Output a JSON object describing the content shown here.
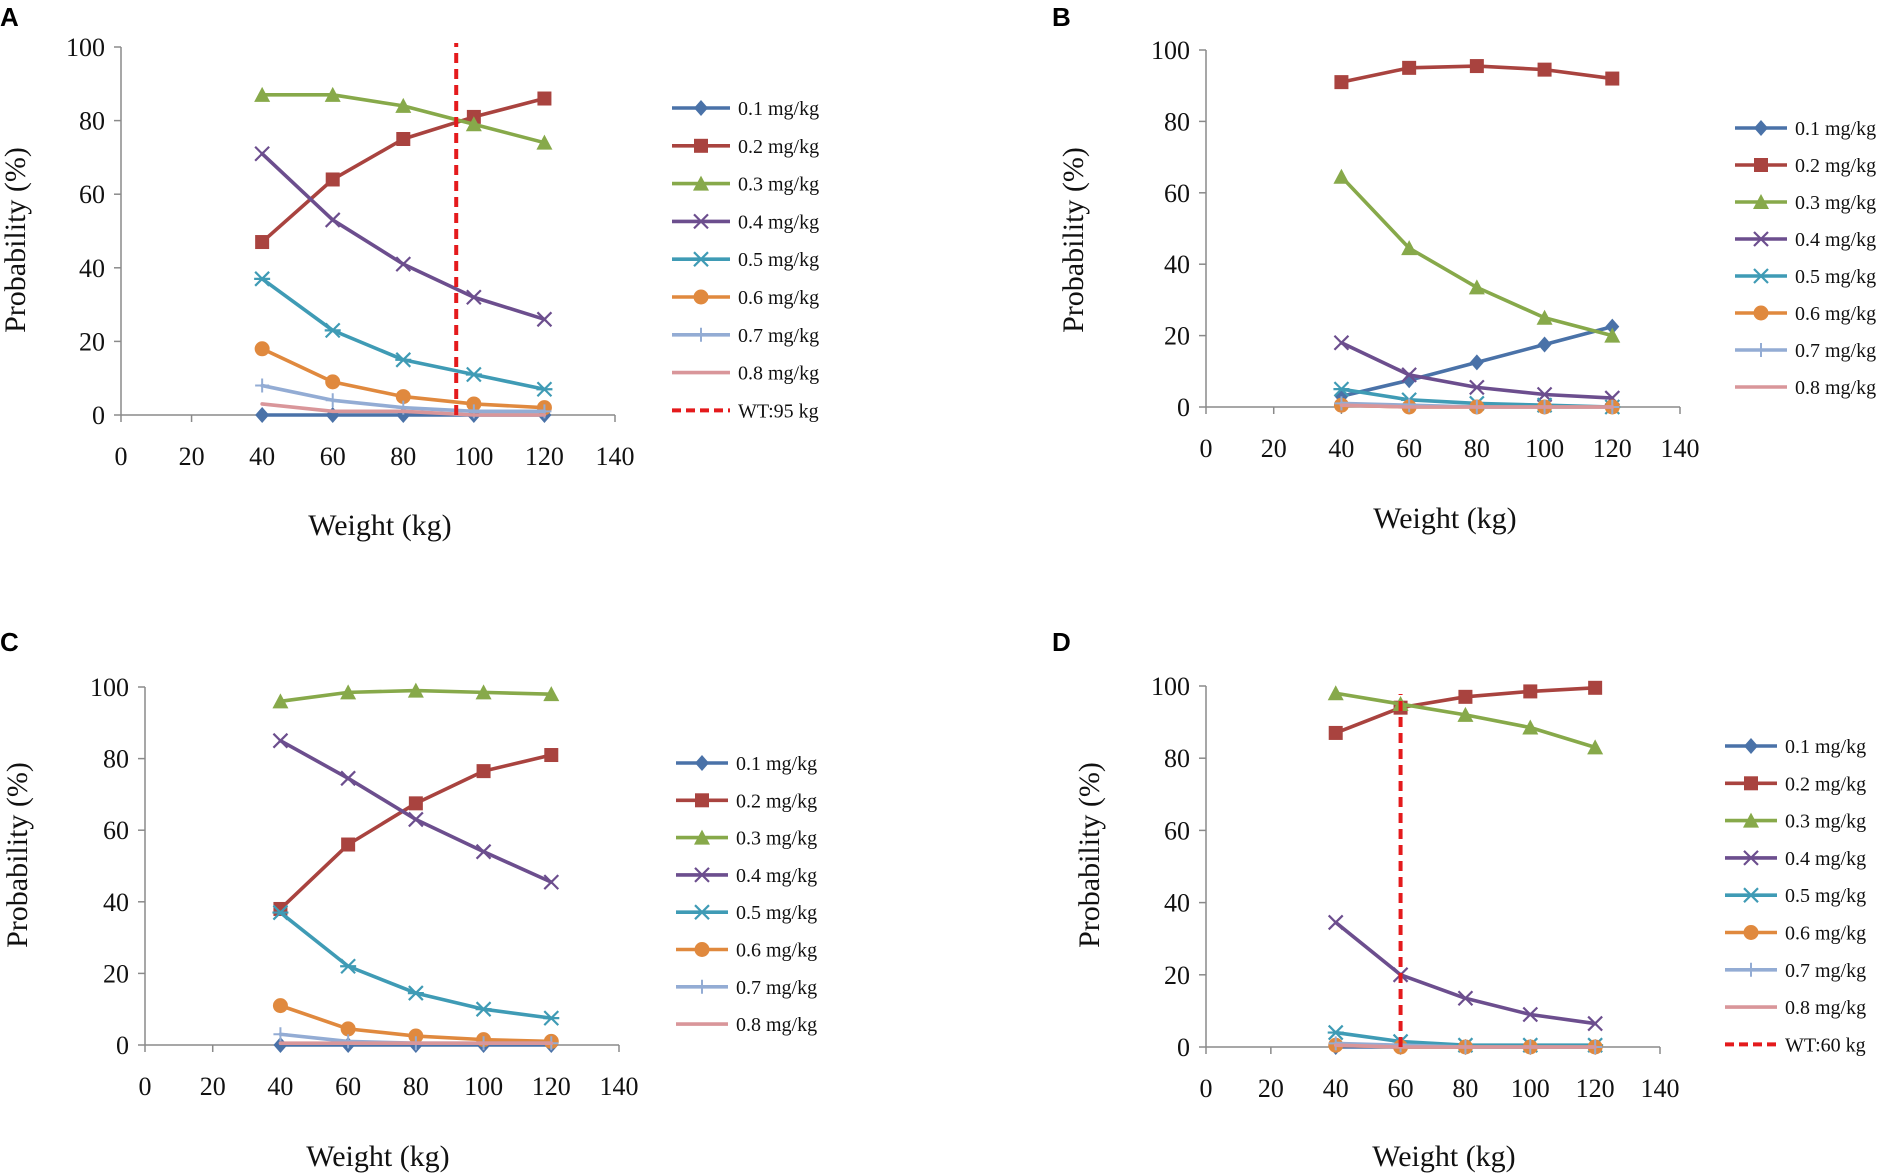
{
  "colors": {
    "0.1 mg/kg": "#4A72A8",
    "0.2 mg/kg": "#A9433F",
    "0.3 mg/kg": "#87A94A",
    "0.4 mg/kg": "#6C4E8E",
    "0.5 mg/kg": "#3F9BB5",
    "0.6 mg/kg": "#E0893E",
    "0.7 mg/kg": "#93ACD4",
    "0.8 mg/kg": "#D9969A",
    "wt_line": "#E41A1C"
  },
  "markers": {
    "0.1 mg/kg": "diamond",
    "0.2 mg/kg": "square",
    "0.3 mg/kg": "triangle",
    "0.4 mg/kg": "x",
    "0.5 mg/kg": "asterisk",
    "0.6 mg/kg": "circle",
    "0.7 mg/kg": "plus",
    "0.8 mg/kg": "none"
  },
  "chart_data": [
    {
      "panel": "A",
      "type": "line",
      "xlabel": "Weight (kg)",
      "ylabel": "Probability (%)",
      "xlim": [
        0,
        140
      ],
      "ylim": [
        0,
        100
      ],
      "xticks": [
        0,
        20,
        40,
        60,
        80,
        100,
        120,
        140
      ],
      "yticks": [
        0,
        20,
        40,
        60,
        80,
        100
      ],
      "x": [
        40,
        60,
        80,
        100,
        120
      ],
      "series": [
        {
          "name": "0.1 mg/kg",
          "values": [
            0,
            0,
            0,
            0,
            0
          ]
        },
        {
          "name": "0.2 mg/kg",
          "values": [
            47,
            64,
            75,
            81,
            86
          ]
        },
        {
          "name": "0.3 mg/kg",
          "values": [
            87,
            87,
            84,
            79,
            74
          ]
        },
        {
          "name": "0.4 mg/kg",
          "values": [
            71,
            53,
            41,
            32,
            26
          ]
        },
        {
          "name": "0.5 mg/kg",
          "values": [
            37,
            23,
            15,
            11,
            7
          ]
        },
        {
          "name": "0.6 mg/kg",
          "values": [
            18,
            9,
            5,
            3,
            2
          ]
        },
        {
          "name": "0.7 mg/kg",
          "values": [
            8,
            4,
            2,
            1,
            1
          ]
        },
        {
          "name": "0.8 mg/kg",
          "values": [
            3,
            1,
            1,
            0,
            0
          ]
        }
      ],
      "vline": {
        "x": 95,
        "label": "WT:95 kg"
      }
    },
    {
      "panel": "B",
      "type": "line",
      "xlabel": "Weight (kg)",
      "ylabel": "Probability (%)",
      "xlim": [
        0,
        140
      ],
      "ylim": [
        0,
        100
      ],
      "xticks": [
        0,
        20,
        40,
        60,
        80,
        100,
        120,
        140
      ],
      "yticks": [
        0,
        20,
        40,
        60,
        80,
        100
      ],
      "x": [
        40,
        60,
        80,
        100,
        120
      ],
      "series": [
        {
          "name": "0.1 mg/kg",
          "values": [
            3,
            7.5,
            12.5,
            17.5,
            22.5
          ]
        },
        {
          "name": "0.2 mg/kg",
          "values": [
            91,
            95,
            95.5,
            94.5,
            92
          ]
        },
        {
          "name": "0.3 mg/kg",
          "values": [
            64.5,
            44.5,
            33.5,
            25,
            20
          ]
        },
        {
          "name": "0.4 mg/kg",
          "values": [
            18,
            9,
            5.5,
            3.5,
            2.5
          ]
        },
        {
          "name": "0.5 mg/kg",
          "values": [
            5,
            2,
            1,
            0.5,
            0
          ]
        },
        {
          "name": "0.6 mg/kg",
          "values": [
            0.5,
            0,
            0,
            0,
            0
          ]
        },
        {
          "name": "0.7 mg/kg",
          "values": [
            1,
            0.5,
            0,
            0,
            0
          ]
        },
        {
          "name": "0.8 mg/kg",
          "values": [
            0.5,
            0,
            0,
            0,
            0
          ]
        }
      ],
      "vline": null
    },
    {
      "panel": "C",
      "type": "line",
      "xlabel": "Weight (kg)",
      "ylabel": "Probability (%)",
      "xlim": [
        0,
        140
      ],
      "ylim": [
        0,
        100
      ],
      "xticks": [
        0,
        20,
        40,
        60,
        80,
        100,
        120,
        140
      ],
      "yticks": [
        0,
        20,
        40,
        60,
        80,
        100
      ],
      "x": [
        40,
        60,
        80,
        100,
        120
      ],
      "series": [
        {
          "name": "0.1 mg/kg",
          "values": [
            0,
            0,
            0,
            0,
            0
          ]
        },
        {
          "name": "0.2 mg/kg",
          "values": [
            38,
            56,
            67.5,
            76.5,
            81
          ]
        },
        {
          "name": "0.3 mg/kg",
          "values": [
            96,
            98.5,
            99,
            98.5,
            98
          ]
        },
        {
          "name": "0.4 mg/kg",
          "values": [
            85,
            74.5,
            63,
            54,
            45.5
          ]
        },
        {
          "name": "0.5 mg/kg",
          "values": [
            37,
            22,
            14.5,
            10,
            7.5
          ]
        },
        {
          "name": "0.6 mg/kg",
          "values": [
            11,
            4.5,
            2.5,
            1.5,
            1
          ]
        },
        {
          "name": "0.7 mg/kg",
          "values": [
            3,
            1,
            0.5,
            0.5,
            0.5
          ]
        },
        {
          "name": "0.8 mg/kg",
          "values": [
            0.5,
            0.5,
            0.5,
            0.5,
            0.5
          ]
        }
      ],
      "vline": null
    },
    {
      "panel": "D",
      "type": "line",
      "xlabel": "Weight (kg)",
      "ylabel": "Probability (%)",
      "xlim": [
        0,
        140
      ],
      "ylim": [
        0,
        100
      ],
      "xticks": [
        0,
        20,
        40,
        60,
        80,
        100,
        120,
        140
      ],
      "yticks": [
        0,
        20,
        40,
        60,
        80,
        100
      ],
      "x": [
        40,
        60,
        80,
        100,
        120
      ],
      "series": [
        {
          "name": "0.1 mg/kg",
          "values": [
            0,
            0,
            0,
            0,
            0
          ]
        },
        {
          "name": "0.2 mg/kg",
          "values": [
            87,
            94,
            97,
            98.5,
            99.5
          ]
        },
        {
          "name": "0.3 mg/kg",
          "values": [
            98,
            95,
            92,
            88.5,
            83
          ]
        },
        {
          "name": "0.4 mg/kg",
          "values": [
            34.5,
            20,
            13.5,
            9,
            6.5
          ]
        },
        {
          "name": "0.5 mg/kg",
          "values": [
            4,
            1.5,
            0.5,
            0.5,
            0.5
          ]
        },
        {
          "name": "0.6 mg/kg",
          "values": [
            0.5,
            0,
            0,
            0,
            0
          ]
        },
        {
          "name": "0.7 mg/kg",
          "values": [
            1,
            0.5,
            0,
            0,
            0
          ]
        },
        {
          "name": "0.8 mg/kg",
          "values": [
            0.5,
            0,
            0,
            0,
            0
          ]
        }
      ],
      "vline": {
        "x": 60,
        "label": "WT:60 kg"
      }
    }
  ]
}
